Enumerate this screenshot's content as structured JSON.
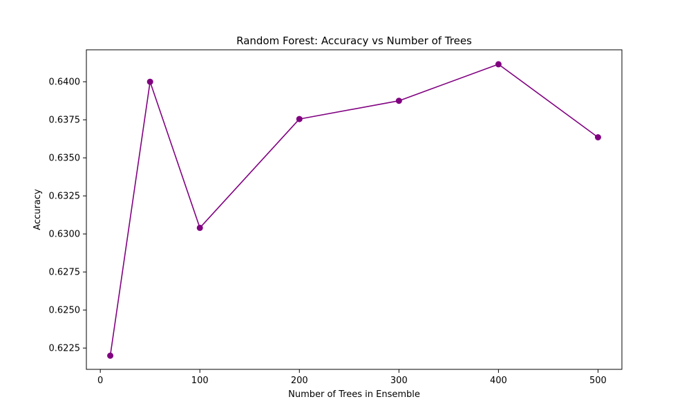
{
  "chart_data": {
    "type": "line",
    "title": "Random Forest: Accuracy vs Number of Trees",
    "xlabel": "Number of Trees in Ensemble",
    "ylabel": "Accuracy",
    "x": [
      10,
      50,
      100,
      200,
      300,
      400,
      500
    ],
    "series": [
      {
        "values": [
          0.622,
          0.64,
          0.6304,
          0.63755,
          0.63875,
          0.64115,
          0.63635
        ],
        "color": "#800080",
        "marker": "circle"
      }
    ],
    "xlim": [
      -14,
      524
    ],
    "ylim": [
      0.6211,
      0.6421
    ],
    "xticks": [
      0,
      100,
      200,
      300,
      400,
      500
    ],
    "xtick_labels": [
      "0",
      "100",
      "200",
      "300",
      "400",
      "500"
    ],
    "yticks": [
      0.6225,
      0.625,
      0.6275,
      0.63,
      0.6325,
      0.635,
      0.6375,
      0.64
    ],
    "ytick_labels": [
      "0.6225",
      "0.6250",
      "0.6275",
      "0.6300",
      "0.6325",
      "0.6350",
      "0.6375",
      "0.6400"
    ],
    "grid": false,
    "legend": false
  }
}
